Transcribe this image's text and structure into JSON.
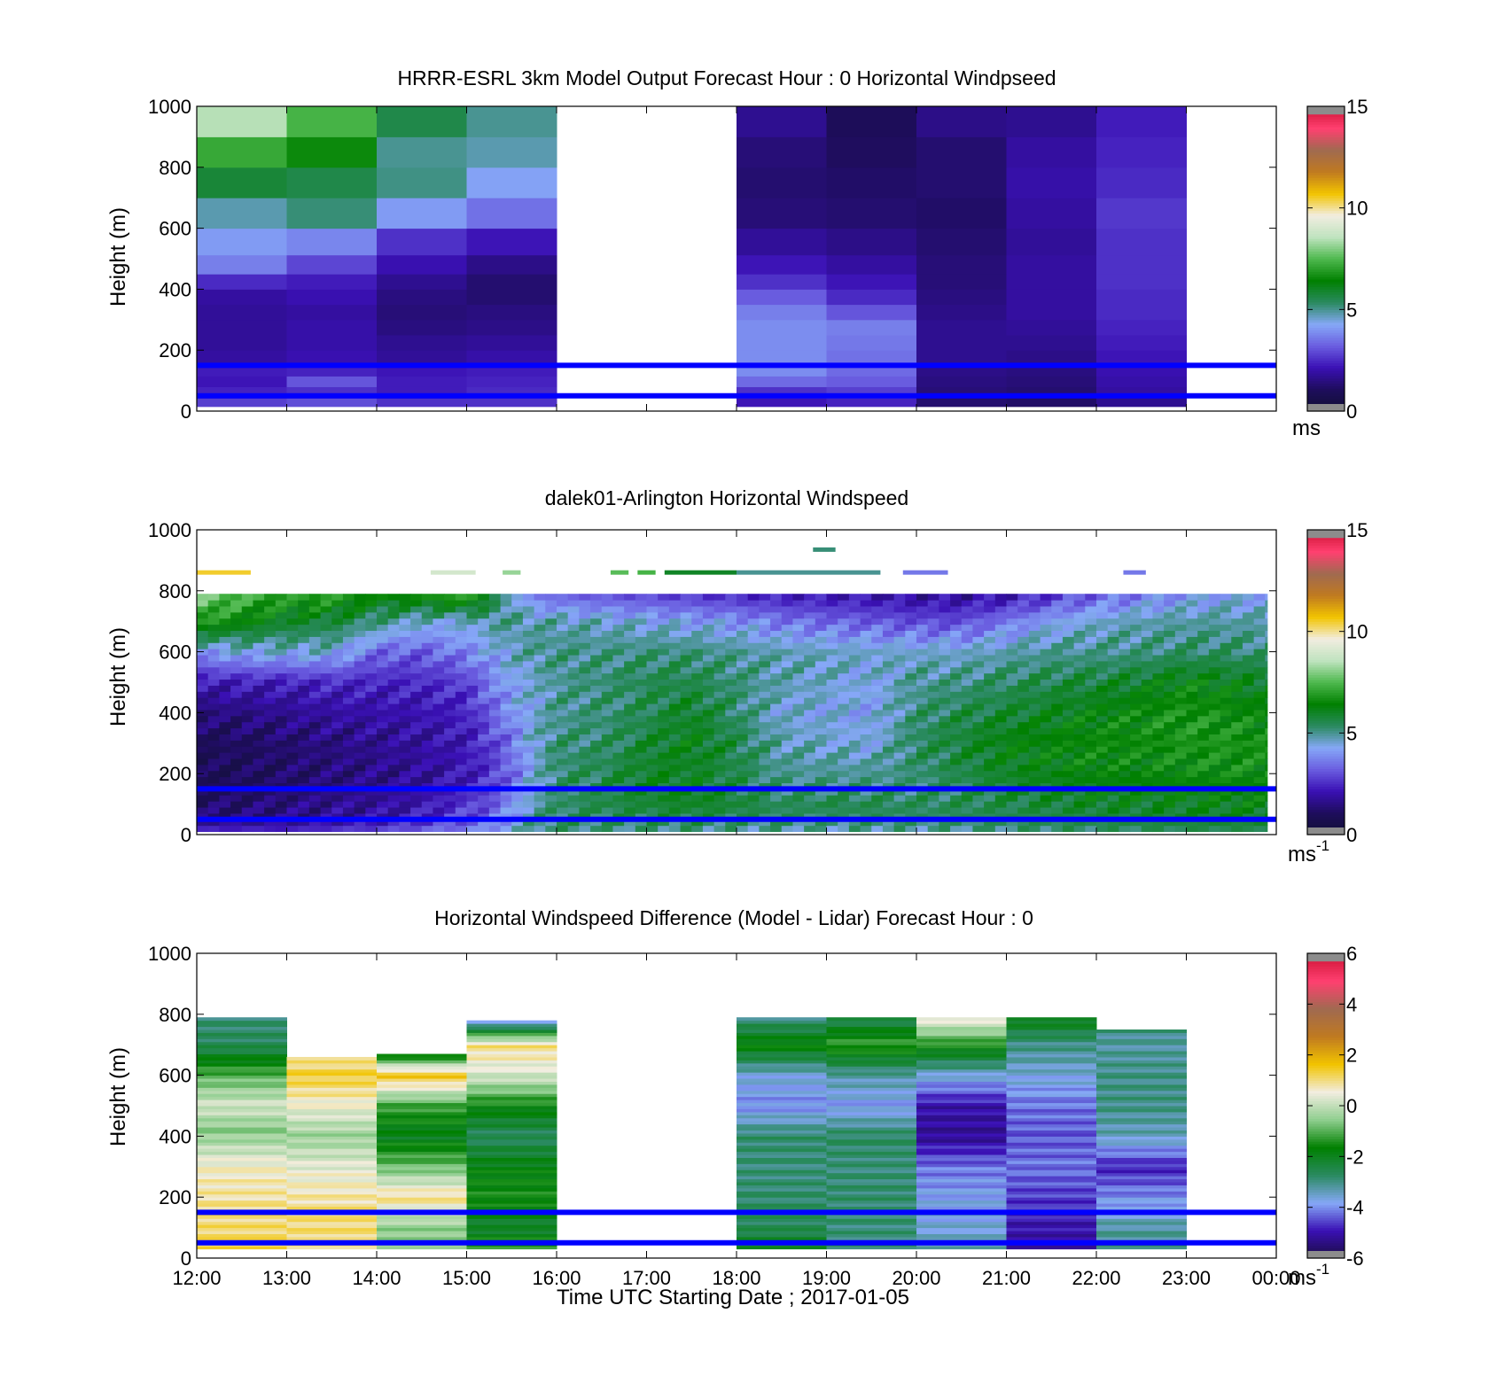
{
  "colors": {
    "reference_lines": "#0000ff",
    "windspeed_colormap": [
      "#111133",
      "#1e0d5c",
      "#3a10b4",
      "#6a5de0",
      "#86a8f7",
      "#2a8a60",
      "#008000",
      "#4db84d",
      "#bfe3bf",
      "#f2ede0",
      "#f2c400",
      "#c07a20",
      "#a06a50",
      "#ff4070",
      "#cc1133"
    ],
    "difference_colormap": [
      "#1a0d40",
      "#3a10b4",
      "#86a8f7",
      "#2a8a60",
      "#008000",
      "#8fce8f",
      "#f2ede0",
      "#f2c400",
      "#c07a20",
      "#a06a50",
      "#ff4070",
      "#cc1133"
    ]
  },
  "x_axis": {
    "label": "Time UTC  Starting Date ; 2017-01-05",
    "ticks": [
      "12:00",
      "13:00",
      "14:00",
      "15:00",
      "16:00",
      "17:00",
      "18:00",
      "19:00",
      "20:00",
      "21:00",
      "22:00",
      "23:00",
      "00:00"
    ]
  },
  "chart_data": [
    {
      "type": "heatmap",
      "title": "HRRR-ESRL 3km Model Output   Forecast Hour : 0 Horizontal Windpseed",
      "ylabel": "Height (m)",
      "ylim": [
        0,
        1000
      ],
      "yticks": [
        "0",
        "200",
        "400",
        "600",
        "800",
        "1000"
      ],
      "xlim_hours": [
        12,
        24
      ],
      "colorbar": {
        "min": 0,
        "max": 15,
        "ticks": [
          "0",
          "5",
          "10",
          "15"
        ],
        "unit": "ms"
      },
      "reference_lines_m": [
        50,
        150
      ],
      "heights_m": [
        25,
        60,
        100,
        130,
        175,
        225,
        275,
        325,
        375,
        425,
        475,
        550,
        650,
        750,
        850,
        950
      ],
      "columns": [
        {
          "hour": 12,
          "values": [
            2.8,
            2.4,
            2.2,
            2.3,
            1.9,
            1.8,
            1.8,
            1.8,
            1.9,
            2.5,
            3.7,
            4.1,
            4.8,
            5.8,
            7.2,
            8.5
          ]
        },
        {
          "hour": 13,
          "values": [
            3.0,
            2.6,
            3.1,
            2.4,
            2.1,
            2.0,
            2.0,
            1.9,
            2.1,
            2.3,
            2.9,
            3.8,
            5.2,
            5.6,
            6.6,
            7.4
          ]
        },
        {
          "hour": 14,
          "values": [
            2.6,
            2.3,
            2.3,
            2.2,
            1.8,
            1.7,
            1.5,
            1.4,
            1.5,
            1.7,
            2.1,
            2.6,
            4.1,
            5.1,
            5.0,
            5.6
          ]
        },
        {
          "hour": 15,
          "values": [
            2.6,
            2.5,
            2.4,
            2.3,
            2.0,
            1.8,
            1.6,
            1.5,
            1.3,
            1.3,
            1.6,
            2.2,
            3.5,
            4.2,
            4.8,
            5.0
          ]
        },
        {
          "hour": 16,
          "values": null
        },
        {
          "hour": 17,
          "values": null
        },
        {
          "hour": 18,
          "values": [
            2.2,
            2.6,
            3.4,
            3.9,
            3.9,
            3.9,
            3.9,
            3.7,
            3.2,
            2.6,
            2.2,
            1.8,
            1.4,
            1.3,
            1.4,
            1.7
          ]
        },
        {
          "hour": 19,
          "values": [
            2.4,
            2.8,
            3.2,
            3.4,
            3.5,
            3.6,
            3.7,
            3.1,
            2.5,
            2.2,
            1.9,
            1.6,
            1.3,
            1.2,
            1.1,
            1.0
          ]
        },
        {
          "hour": 20,
          "values": [
            1.3,
            1.4,
            1.5,
            1.6,
            1.7,
            1.7,
            1.7,
            1.6,
            1.5,
            1.4,
            1.4,
            1.3,
            1.2,
            1.3,
            1.3,
            1.6
          ]
        },
        {
          "hour": 21,
          "values": [
            1.2,
            1.3,
            1.4,
            1.5,
            1.6,
            1.7,
            1.8,
            1.9,
            1.9,
            1.9,
            1.9,
            1.8,
            1.9,
            2.0,
            1.9,
            1.7
          ]
        },
        {
          "hour": 22,
          "values": [
            1.7,
            1.9,
            2.0,
            2.1,
            2.2,
            2.3,
            2.4,
            2.5,
            2.5,
            2.6,
            2.6,
            2.6,
            2.7,
            2.5,
            2.4,
            2.3
          ]
        },
        {
          "hour": 23,
          "values": null
        }
      ]
    },
    {
      "type": "heatmap",
      "title": "dalek01-Arlington  Horizontal Windspeed",
      "ylabel": "Height (m)",
      "ylim": [
        0,
        1000
      ],
      "yticks": [
        "0",
        "200",
        "400",
        "600",
        "800",
        "1000"
      ],
      "xlim_hours": [
        12,
        24
      ],
      "colorbar": {
        "min": 0,
        "max": 15,
        "ticks": [
          "0",
          "5",
          "10",
          "15"
        ],
        "unit": "ms",
        "unit_exponent": "-1"
      },
      "reference_lines_m": [
        50,
        150
      ],
      "data_range_hours": [
        12,
        23.9
      ],
      "max_height_m": 790,
      "profile_knots_hours": [
        12,
        12.5,
        13,
        13.5,
        14,
        14.5,
        15,
        15.25,
        15.5,
        15.75,
        16,
        16.5,
        17,
        17.5,
        18,
        18.5,
        19,
        19.5,
        20,
        20.5,
        21,
        21.5,
        22,
        22.5,
        23,
        23.5,
        23.9
      ],
      "profile_knots_heights_m": [
        10,
        50,
        100,
        150,
        200,
        300,
        400,
        500,
        600,
        700,
        790
      ],
      "profile_values": [
        [
          2.6,
          1.4,
          1.2,
          1.0,
          0.9,
          1.0,
          1.4,
          2.2,
          4.0,
          7.0,
          8.0
        ],
        [
          2.6,
          1.5,
          1.3,
          1.1,
          1.0,
          1.1,
          1.5,
          2.3,
          4.4,
          6.5,
          7.5
        ],
        [
          2.5,
          1.6,
          1.5,
          1.3,
          1.2,
          1.3,
          1.7,
          2.3,
          4.5,
          6.0,
          7.0
        ],
        [
          2.8,
          1.8,
          1.7,
          1.5,
          1.4,
          1.5,
          1.9,
          2.5,
          4.5,
          5.8,
          7.2
        ],
        [
          3.0,
          2.0,
          1.8,
          1.7,
          1.6,
          1.7,
          2.0,
          2.4,
          3.4,
          5.2,
          6.5
        ],
        [
          3.4,
          2.4,
          2.1,
          1.9,
          1.8,
          1.9,
          2.1,
          2.5,
          3.2,
          4.6,
          6.8
        ],
        [
          3.8,
          3.0,
          2.7,
          2.4,
          2.2,
          2.2,
          2.4,
          2.8,
          3.8,
          4.5,
          7.5
        ],
        [
          4.0,
          3.4,
          3.0,
          2.8,
          2.6,
          2.8,
          3.2,
          3.6,
          4.2,
          5.0,
          6.0
        ],
        [
          4.6,
          4.2,
          3.9,
          3.6,
          3.4,
          3.5,
          4.0,
          4.3,
          4.6,
          5.0,
          4.5
        ],
        [
          5.0,
          5.0,
          4.8,
          4.6,
          4.4,
          4.6,
          4.5,
          4.5,
          5.0,
          4.8,
          3.6
        ],
        [
          5.2,
          5.4,
          5.3,
          5.2,
          5.3,
          5.2,
          5.0,
          5.0,
          5.1,
          4.8,
          3.2
        ],
        [
          5.0,
          5.4,
          5.6,
          5.5,
          5.5,
          5.3,
          5.2,
          5.2,
          5.1,
          4.6,
          3.0
        ],
        [
          5.0,
          5.5,
          5.8,
          6.0,
          6.0,
          5.8,
          5.5,
          5.5,
          5.2,
          4.4,
          2.8
        ],
        [
          5.0,
          5.6,
          6.0,
          6.2,
          6.0,
          6.2,
          6.0,
          5.6,
          5.2,
          4.2,
          2.6
        ],
        [
          4.8,
          5.4,
          5.8,
          5.6,
          5.6,
          5.6,
          5.3,
          5.2,
          5.0,
          4.0,
          2.4
        ],
        [
          4.8,
          5.4,
          5.4,
          5.2,
          5.0,
          4.8,
          4.5,
          4.8,
          4.8,
          3.6,
          2.2
        ],
        [
          4.7,
          5.2,
          5.6,
          5.2,
          5.0,
          4.6,
          4.4,
          4.6,
          4.7,
          3.4,
          2.1
        ],
        [
          4.8,
          5.4,
          5.5,
          5.2,
          5.0,
          4.4,
          4.2,
          4.3,
          4.6,
          3.2,
          2.0
        ],
        [
          4.8,
          5.3,
          5.4,
          5.2,
          5.2,
          5.4,
          5.2,
          5.0,
          4.6,
          3.0,
          1.8
        ],
        [
          4.9,
          5.4,
          5.5,
          5.4,
          5.6,
          5.8,
          5.6,
          5.1,
          4.6,
          3.0,
          1.8
        ],
        [
          5.0,
          5.5,
          5.6,
          5.8,
          6.0,
          6.3,
          5.8,
          5.4,
          4.8,
          3.6,
          2.0
        ],
        [
          5.2,
          5.6,
          5.8,
          6.0,
          6.2,
          6.4,
          6.1,
          5.6,
          5.0,
          4.2,
          2.6
        ],
        [
          5.2,
          5.7,
          6.0,
          6.2,
          6.4,
          6.6,
          6.3,
          5.8,
          5.0,
          4.6,
          3.2
        ],
        [
          5.3,
          5.8,
          6.0,
          6.3,
          6.4,
          6.6,
          6.6,
          6.0,
          5.1,
          4.8,
          3.6
        ],
        [
          5.4,
          5.9,
          6.1,
          6.4,
          6.5,
          6.8,
          6.8,
          6.4,
          5.3,
          4.9,
          4.0
        ],
        [
          5.4,
          6.0,
          6.2,
          6.4,
          6.6,
          6.8,
          6.6,
          6.2,
          5.3,
          4.9,
          4.2
        ],
        [
          5.4,
          6.0,
          6.2,
          6.4,
          6.5,
          6.7,
          6.4,
          6.0,
          5.2,
          4.8,
          4.2
        ]
      ],
      "scattered_returns": [
        {
          "hour_start": 12.0,
          "hour_end": 12.6,
          "height_m": 860,
          "value": 10.5
        },
        {
          "hour_start": 14.6,
          "hour_end": 15.1,
          "height_m": 860,
          "value": 9.0
        },
        {
          "hour_start": 15.4,
          "hour_end": 15.6,
          "height_m": 860,
          "value": 8.2
        },
        {
          "hour_start": 16.6,
          "hour_end": 16.8,
          "height_m": 860,
          "value": 7.6
        },
        {
          "hour_start": 16.9,
          "hour_end": 17.1,
          "height_m": 860,
          "value": 7.4
        },
        {
          "hour_start": 17.2,
          "hour_end": 18.0,
          "height_m": 860,
          "value": 6.0
        },
        {
          "hour_start": 18.0,
          "hour_end": 19.6,
          "height_m": 860,
          "value": 5.0
        },
        {
          "hour_start": 18.85,
          "hour_end": 19.1,
          "height_m": 935,
          "value": 5.2
        },
        {
          "hour_start": 19.85,
          "hour_end": 20.35,
          "height_m": 860,
          "value": 3.6
        },
        {
          "hour_start": 22.3,
          "hour_end": 22.55,
          "height_m": 860,
          "value": 3.6
        }
      ]
    },
    {
      "type": "heatmap",
      "title": "Horizontal Windspeed Difference (Model - Lidar) Forecast Hour : 0",
      "ylabel": "Height (m)",
      "ylim": [
        0,
        1000
      ],
      "yticks": [
        "0",
        "200",
        "400",
        "600",
        "800",
        "1000"
      ],
      "xlim_hours": [
        12,
        24
      ],
      "colorbar": {
        "min": -6,
        "max": 6,
        "ticks": [
          "-6",
          "-4",
          "-2",
          "0",
          "2",
          "4",
          "6"
        ],
        "unit": "ms",
        "unit_exponent": "-1"
      },
      "reference_lines_m": [
        50,
        150
      ],
      "columns": [
        {
          "hour": 12,
          "top_m": 790,
          "knots_m": [
            30,
            150,
            300,
            420,
            500,
            600,
            700,
            790
          ],
          "values": [
            1.2,
            1.0,
            0.6,
            -0.6,
            0.2,
            -1.0,
            -2.6,
            -2.9
          ]
        },
        {
          "hour": 13,
          "top_m": 660,
          "knots_m": [
            30,
            150,
            300,
            400,
            500,
            600,
            660
          ],
          "values": [
            1.1,
            1.0,
            0.4,
            -0.4,
            0.5,
            1.4,
            0.8
          ]
        },
        {
          "hour": 14,
          "top_m": 670,
          "knots_m": [
            30,
            100,
            200,
            300,
            400,
            500,
            600,
            670
          ],
          "values": [
            -0.6,
            -0.5,
            1.0,
            -0.8,
            -2.0,
            -1.2,
            1.6,
            -2.0
          ]
        },
        {
          "hour": 15,
          "top_m": 780,
          "knots_m": [
            30,
            100,
            200,
            300,
            400,
            500,
            600,
            700,
            780
          ],
          "values": [
            -1.2,
            -2.2,
            -1.5,
            -1.8,
            -2.7,
            -1.6,
            0.2,
            1.0,
            -4.2
          ]
        },
        {
          "hour": 16,
          "top_m": 0,
          "knots_m": [],
          "values": []
        },
        {
          "hour": 17,
          "top_m": 0,
          "knots_m": [],
          "values": []
        },
        {
          "hour": 18,
          "top_m": 790,
          "knots_m": [
            30,
            100,
            200,
            300,
            400,
            500,
            600,
            700,
            790
          ],
          "values": [
            -1.8,
            -2.6,
            -2.8,
            -2.9,
            -2.8,
            -4.0,
            -3.6,
            -1.6,
            -3.0
          ]
        },
        {
          "hour": 19,
          "top_m": 790,
          "knots_m": [
            30,
            100,
            200,
            300,
            400,
            500,
            600,
            700,
            790
          ],
          "values": [
            -2.8,
            -2.9,
            -2.8,
            -2.9,
            -2.7,
            -3.9,
            -3.2,
            -1.2,
            -2.6
          ]
        },
        {
          "hour": 20,
          "top_m": 790,
          "knots_m": [
            30,
            100,
            200,
            300,
            400,
            500,
            600,
            700,
            790
          ],
          "values": [
            -3.4,
            -3.6,
            -3.8,
            -4.2,
            -5.2,
            -5.0,
            -3.6,
            -1.4,
            0.6
          ]
        },
        {
          "hour": 21,
          "top_m": 790,
          "knots_m": [
            30,
            100,
            200,
            300,
            400,
            500,
            600,
            700,
            790
          ],
          "values": [
            -5.0,
            -5.0,
            -4.6,
            -4.2,
            -4.4,
            -4.2,
            -3.6,
            -3.0,
            -1.8
          ]
        },
        {
          "hour": 22,
          "top_m": 750,
          "knots_m": [
            30,
            100,
            200,
            300,
            400,
            500,
            600,
            700,
            750
          ],
          "values": [
            -3.0,
            -3.2,
            -4.0,
            -4.8,
            -3.4,
            -3.0,
            -3.0,
            -3.2,
            -3.0
          ]
        },
        {
          "hour": 23,
          "top_m": 0,
          "knots_m": [],
          "values": []
        }
      ]
    }
  ]
}
